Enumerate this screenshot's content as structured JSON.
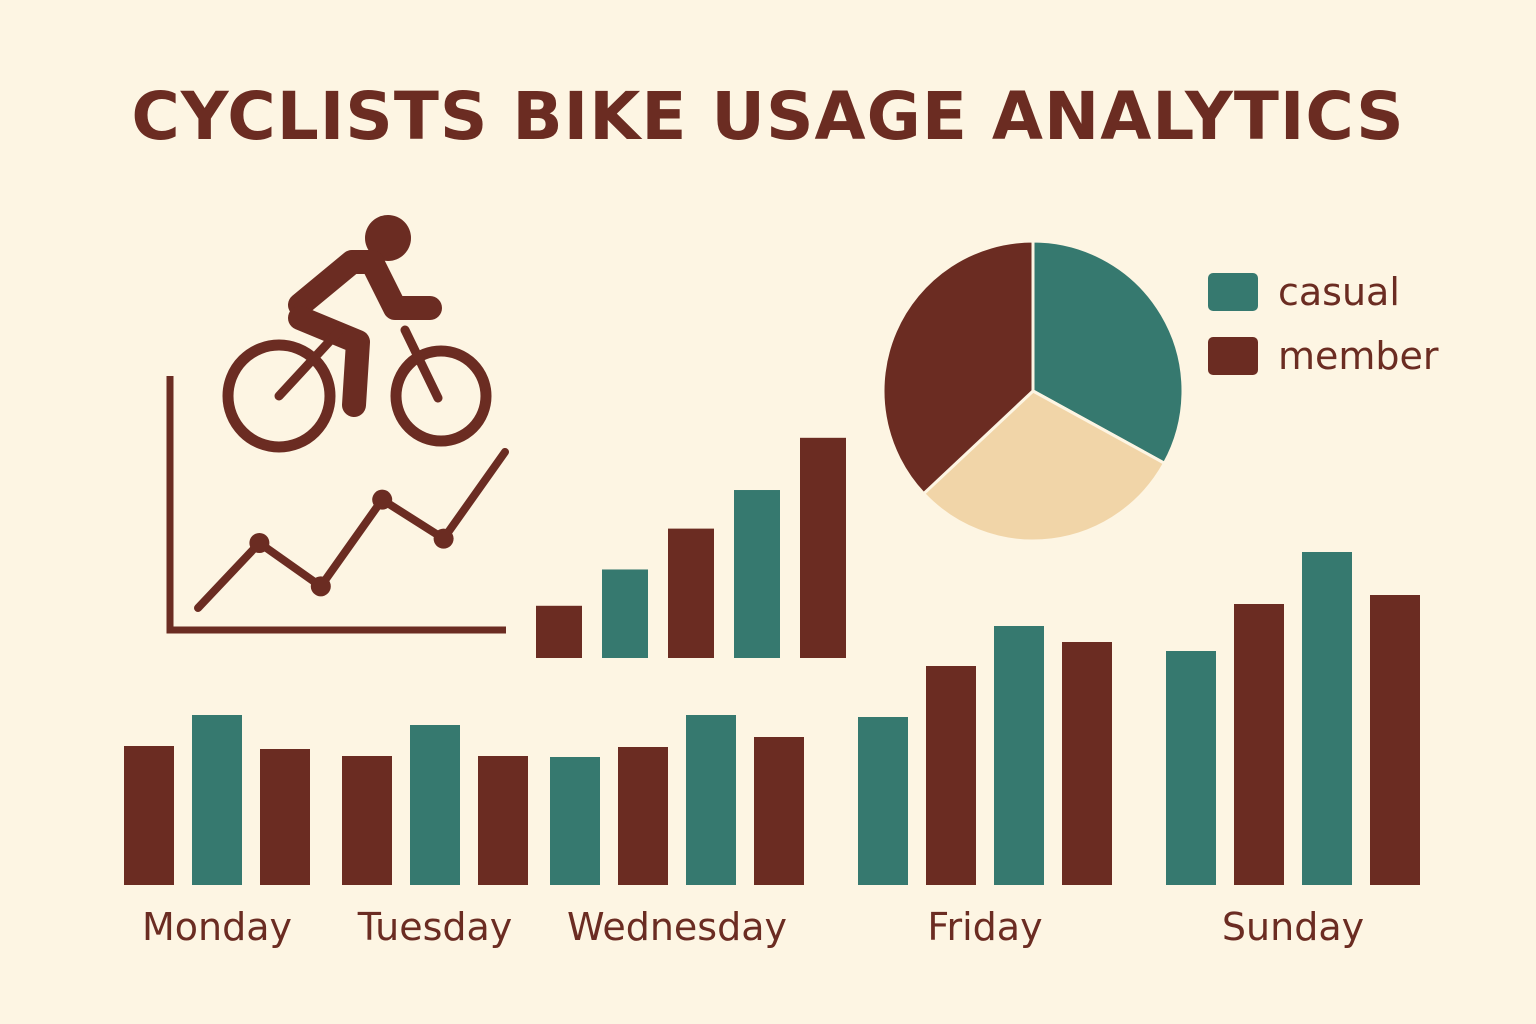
{
  "title": "CYCLISTS BIKE USAGE ANALYTICS",
  "colors": {
    "background": "#fdf5e3",
    "dark": "#6b2c22",
    "teal": "#36796f",
    "sand": "#f1d5a8"
  },
  "icons": [
    "cyclist-icon"
  ],
  "legend": [
    {
      "label": "casual",
      "color": "#36796f"
    },
    {
      "label": "member",
      "color": "#6b2c22"
    }
  ],
  "chart_data": [
    {
      "type": "line",
      "series": [
        {
          "values": [
            1,
            4,
            2,
            6,
            4.2,
            8.2
          ]
        }
      ]
    },
    {
      "type": "bar",
      "values": [
        2.3,
        3.9,
        5.7,
        7.4,
        9.7
      ],
      "colors": [
        "#6b2c22",
        "#36796f",
        "#6b2c22",
        "#36796f",
        "#6b2c22"
      ]
    },
    {
      "type": "pie",
      "slices": [
        {
          "value": 33,
          "color": "#36796f"
        },
        {
          "value": 30,
          "color": "#f1d5a8"
        },
        {
          "value": 37,
          "color": "#6b2c22"
        }
      ]
    },
    {
      "type": "bar",
      "categories": [
        "Monday",
        "Tuesday",
        "Wednesday",
        "Friday",
        "Sunday"
      ],
      "groups": [
        {
          "label": "Monday",
          "bars": [
            {
              "value": 13.9,
              "color": "#6b2c22"
            },
            {
              "value": 17.0,
              "color": "#36796f"
            },
            {
              "value": 13.6,
              "color": "#6b2c22"
            }
          ]
        },
        {
          "label": "Tuesday",
          "bars": [
            {
              "value": 12.9,
              "color": "#6b2c22"
            },
            {
              "value": 16.0,
              "color": "#36796f"
            },
            {
              "value": 12.9,
              "color": "#6b2c22"
            }
          ]
        },
        {
          "label": "Wednesday",
          "bars": [
            {
              "value": 12.8,
              "color": "#36796f"
            },
            {
              "value": 13.8,
              "color": "#6b2c22"
            },
            {
              "value": 17.0,
              "color": "#36796f"
            },
            {
              "value": 14.8,
              "color": "#6b2c22"
            }
          ]
        },
        {
          "label": "Friday",
          "bars": [
            {
              "value": 16.8,
              "color": "#36796f"
            },
            {
              "value": 21.9,
              "color": "#6b2c22"
            },
            {
              "value": 25.9,
              "color": "#36796f"
            },
            {
              "value": 24.3,
              "color": "#6b2c22"
            }
          ]
        },
        {
          "label": "Sunday",
          "bars": [
            {
              "value": 23.4,
              "color": "#36796f"
            },
            {
              "value": 28.1,
              "color": "#6b2c22"
            },
            {
              "value": 33.3,
              "color": "#36796f"
            },
            {
              "value": 29.0,
              "color": "#6b2c22"
            }
          ]
        }
      ]
    }
  ]
}
